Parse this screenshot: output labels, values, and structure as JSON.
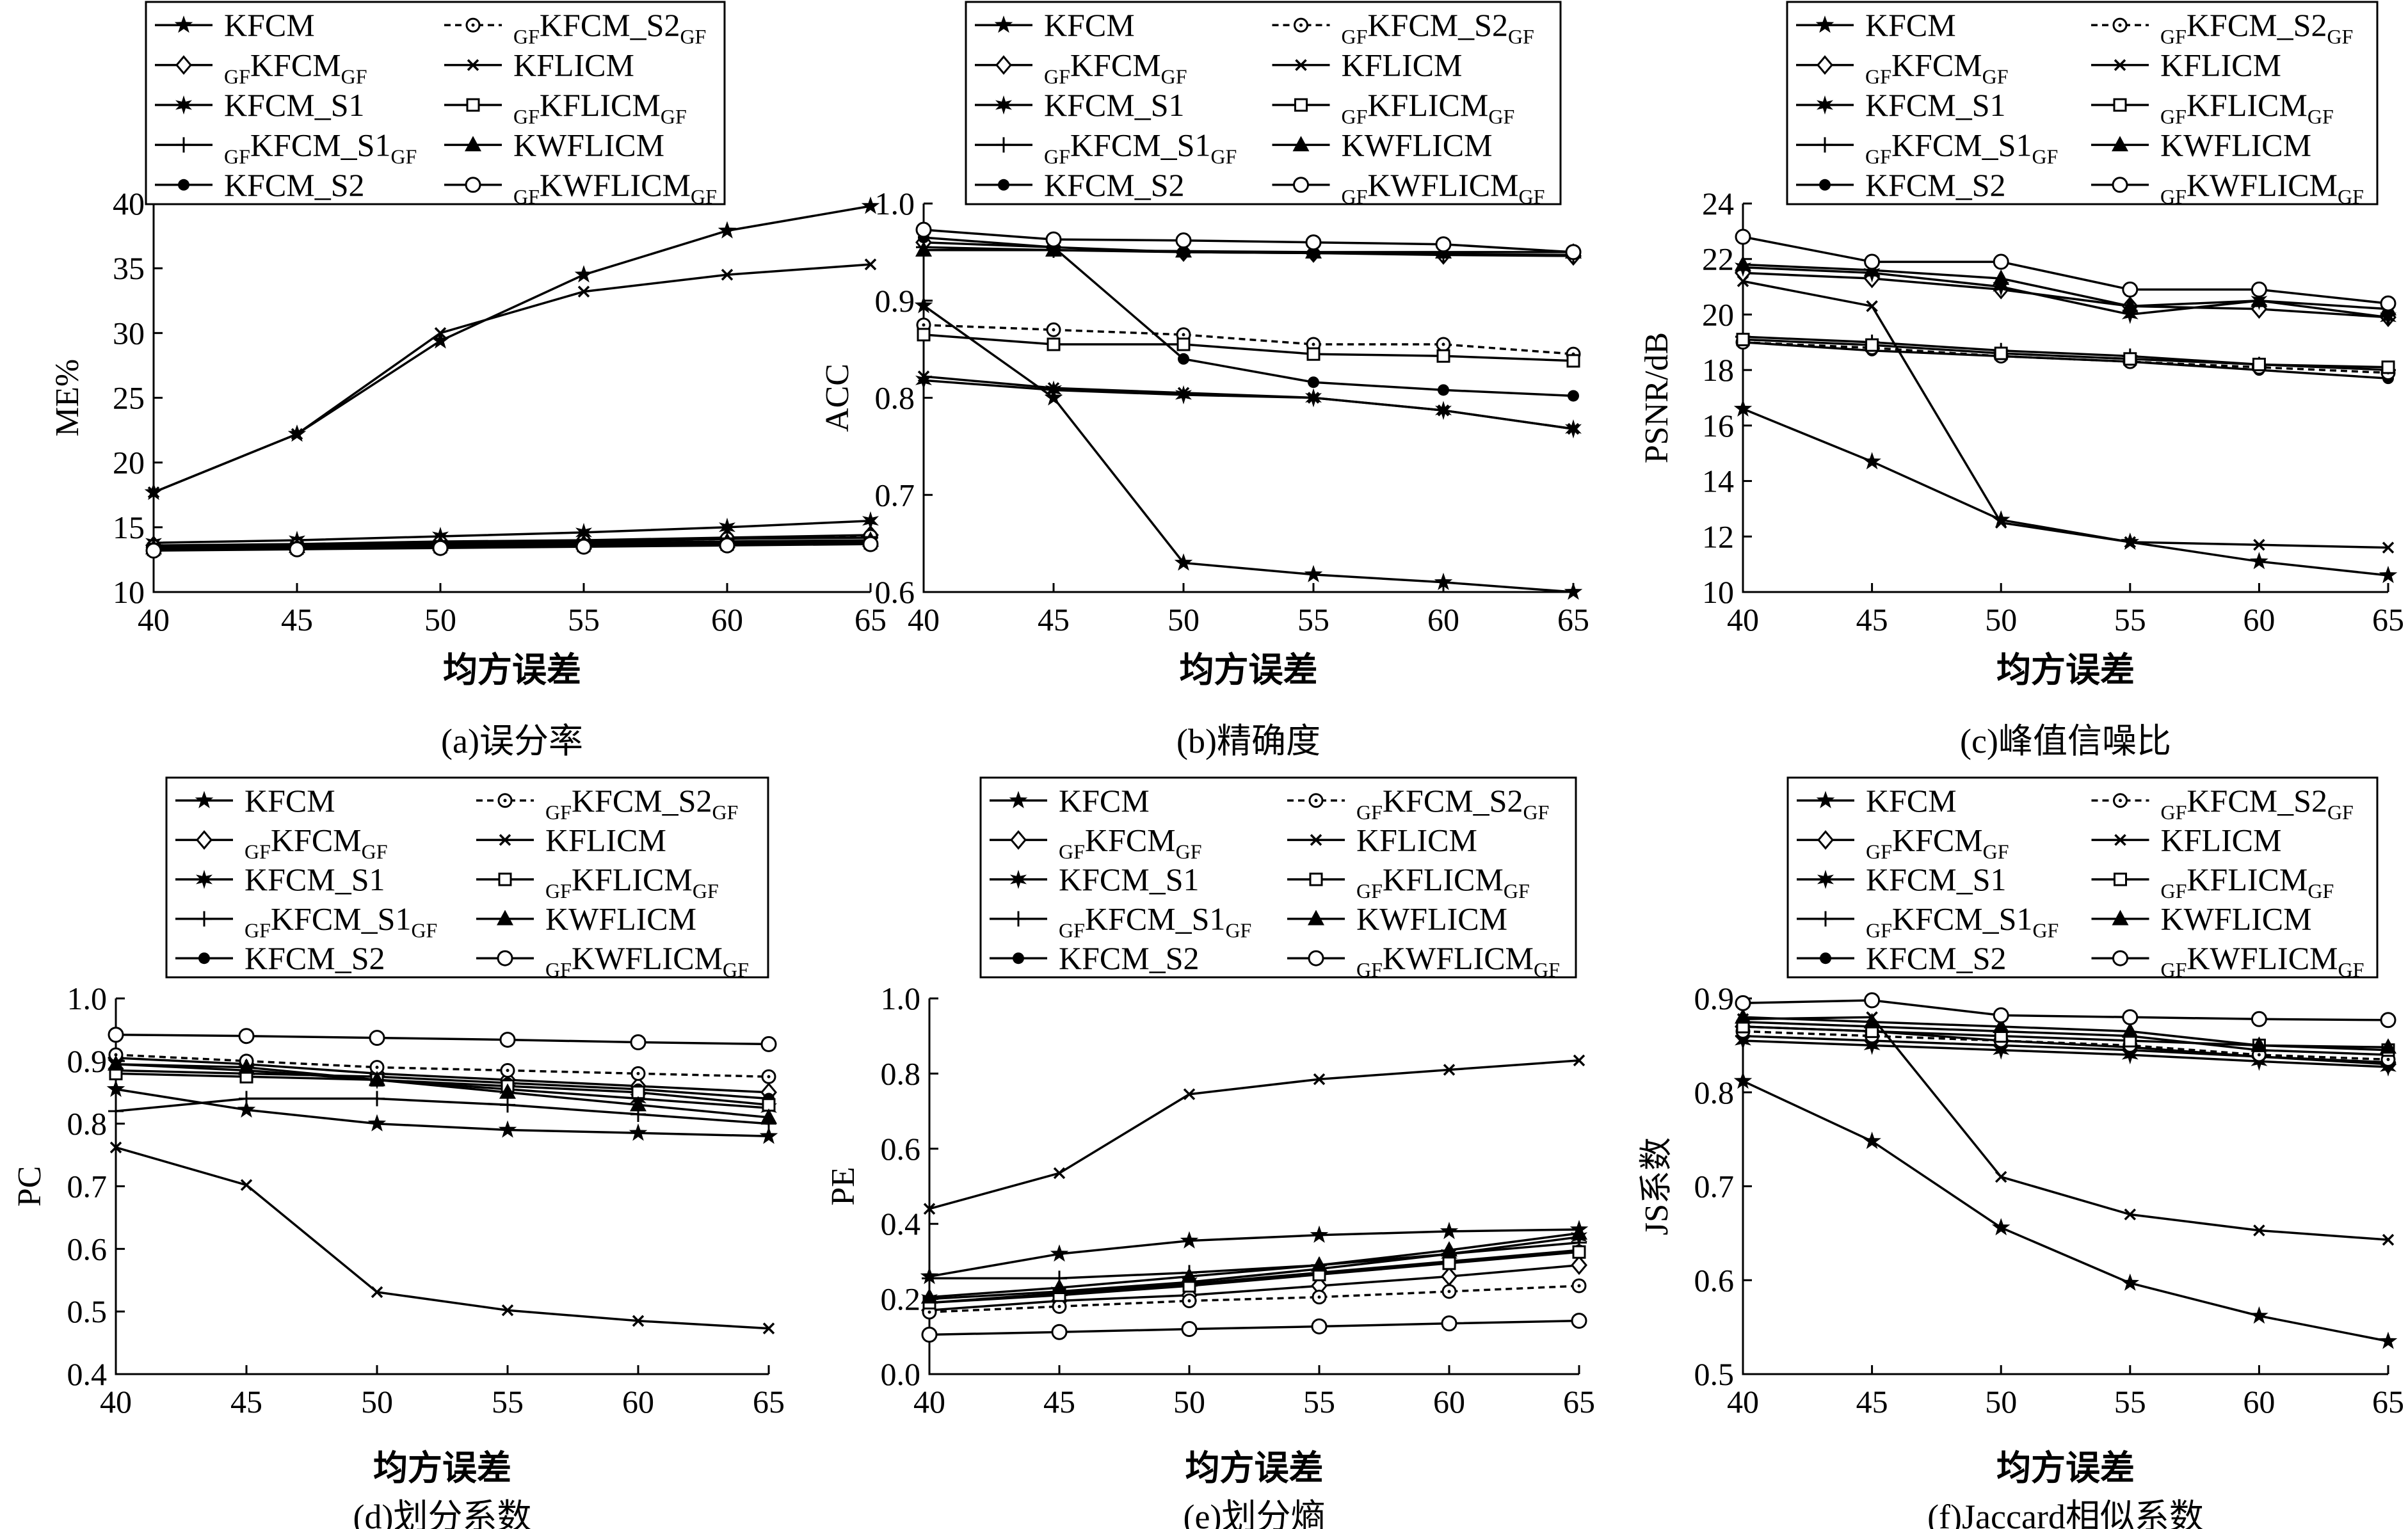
{
  "chart_data": [
    {
      "type": "line",
      "caption": "(a)误分率",
      "xlabel": "均方误差",
      "ylabel": "ME%",
      "x": [
        40,
        45,
        50,
        55,
        60,
        65
      ],
      "xlim": [
        40,
        65
      ],
      "ylim": [
        10,
        40
      ],
      "yticks": [
        "10",
        "15",
        "20",
        "25",
        "30",
        "35",
        "40"
      ],
      "legend_position": "top",
      "series": [
        {
          "name": "KFCM",
          "values": [
            17.7,
            22.2,
            29.4,
            34.5,
            37.9,
            39.8
          ]
        },
        {
          "name": "KFLICM",
          "values": [
            17.7,
            22.2,
            30.0,
            33.2,
            34.5,
            35.3
          ]
        },
        {
          "name": "GFKFCMGF",
          "values": [
            13.6,
            13.7,
            13.9,
            14.0,
            14.2,
            14.4
          ]
        },
        {
          "name": "KFCM_S1",
          "values": [
            13.8,
            14.0,
            14.3,
            14.6,
            15.0,
            15.5
          ]
        },
        {
          "name": "GFKFCM_S1GF",
          "values": [
            13.5,
            13.6,
            13.8,
            13.9,
            14.1,
            14.2
          ]
        },
        {
          "name": "KFCM_S2",
          "values": [
            13.4,
            13.5,
            13.6,
            13.7,
            13.8,
            13.9
          ]
        },
        {
          "name": "GFKFCM_S2GF",
          "values": [
            13.5,
            13.6,
            13.8,
            13.9,
            14.1,
            14.3
          ]
        },
        {
          "name": "GFKFLICMGF",
          "values": [
            13.3,
            13.4,
            13.5,
            13.6,
            13.7,
            13.8
          ]
        },
        {
          "name": "KWFLICM",
          "values": [
            13.4,
            13.5,
            13.7,
            13.8,
            13.9,
            14.0
          ]
        },
        {
          "name": "GFKWFLICMGF",
          "values": [
            13.2,
            13.3,
            13.4,
            13.5,
            13.6,
            13.7
          ]
        }
      ]
    },
    {
      "type": "line",
      "caption": "(b)精确度",
      "xlabel": "均方误差",
      "ylabel": "ACC",
      "x": [
        40,
        45,
        50,
        55,
        60,
        65
      ],
      "xlim": [
        40,
        65
      ],
      "ylim": [
        0.6,
        1.0
      ],
      "yticks": [
        "0.6",
        "0.7",
        "0.8",
        "0.9",
        "1.0"
      ],
      "legend_position": "top",
      "series": [
        {
          "name": "KFCM",
          "values": [
            0.895,
            0.8,
            0.63,
            0.618,
            0.61,
            0.6
          ]
        },
        {
          "name": "KFLICM",
          "values": [
            0.822,
            0.81,
            0.805,
            0.8,
            0.787,
            0.768
          ]
        },
        {
          "name": "GFKFCMGF",
          "values": [
            0.96,
            0.955,
            0.95,
            0.949,
            0.947,
            0.946
          ]
        },
        {
          "name": "KFCM_S1",
          "values": [
            0.818,
            0.808,
            0.803,
            0.8,
            0.787,
            0.768
          ]
        },
        {
          "name": "GFKFCM_S1GF",
          "values": [
            0.955,
            0.952,
            0.95,
            0.949,
            0.948,
            0.947
          ]
        },
        {
          "name": "KFCM_S2",
          "values": [
            0.965,
            0.955,
            0.84,
            0.816,
            0.808,
            0.802
          ]
        },
        {
          "name": "GFKFCM_S2GF",
          "values": [
            0.875,
            0.87,
            0.865,
            0.855,
            0.855,
            0.845
          ]
        },
        {
          "name": "GFKFLICMGF",
          "values": [
            0.865,
            0.855,
            0.855,
            0.845,
            0.843,
            0.838
          ]
        },
        {
          "name": "KWFLICM",
          "values": [
            0.952,
            0.952,
            0.951,
            0.95,
            0.95,
            0.95
          ]
        },
        {
          "name": "GFKWFLICMGF",
          "values": [
            0.973,
            0.963,
            0.962,
            0.96,
            0.958,
            0.95
          ]
        }
      ]
    },
    {
      "type": "line",
      "caption": "(c)峰值信噪比",
      "xlabel": "均方误差",
      "ylabel": "PSNR/dB",
      "x": [
        40,
        45,
        50,
        55,
        60,
        65
      ],
      "xlim": [
        40,
        65
      ],
      "ylim": [
        10,
        24
      ],
      "yticks": [
        "10",
        "12",
        "14",
        "16",
        "18",
        "20",
        "22",
        "24"
      ],
      "legend_position": "top",
      "series": [
        {
          "name": "KFCM",
          "values": [
            16.6,
            14.7,
            12.6,
            11.8,
            11.1,
            10.6
          ]
        },
        {
          "name": "KFLICM",
          "values": [
            21.2,
            20.3,
            12.5,
            11.8,
            11.7,
            11.6
          ]
        },
        {
          "name": "GFKFCMGF",
          "values": [
            21.5,
            21.3,
            20.9,
            20.3,
            20.2,
            19.9
          ]
        },
        {
          "name": "KFCM_S1",
          "values": [
            21.7,
            21.5,
            21.0,
            20.0,
            20.5,
            19.9
          ]
        },
        {
          "name": "GFKFCM_S1GF",
          "values": [
            19.2,
            19.0,
            18.7,
            18.5,
            18.2,
            18.0
          ]
        },
        {
          "name": "KFCM_S2",
          "values": [
            19.0,
            18.7,
            18.5,
            18.3,
            18.0,
            17.7
          ]
        },
        {
          "name": "GFKFCM_S2GF",
          "values": [
            19.0,
            18.8,
            18.5,
            18.3,
            18.1,
            17.9
          ]
        },
        {
          "name": "GFKFLICMGF",
          "values": [
            19.1,
            18.9,
            18.6,
            18.4,
            18.2,
            18.1
          ]
        },
        {
          "name": "KWFLICM",
          "values": [
            21.8,
            21.6,
            21.3,
            20.3,
            20.5,
            20.2
          ]
        },
        {
          "name": "GFKWFLICMGF",
          "values": [
            22.8,
            21.9,
            21.9,
            20.9,
            20.9,
            20.4
          ]
        }
      ]
    },
    {
      "type": "line",
      "caption": "(d)划分系数",
      "xlabel": "均方误差",
      "ylabel": "PC",
      "x": [
        40,
        45,
        50,
        55,
        60,
        65
      ],
      "xlim": [
        40,
        65
      ],
      "ylim": [
        0.4,
        1.0
      ],
      "yticks": [
        "0.4",
        "0.5",
        "0.6",
        "0.7",
        "0.8",
        "0.9",
        "1.0"
      ],
      "legend_position": "top",
      "series": [
        {
          "name": "KFCM",
          "values": [
            0.855,
            0.822,
            0.8,
            0.79,
            0.785,
            0.78
          ]
        },
        {
          "name": "KFLICM",
          "values": [
            0.762,
            0.702,
            0.531,
            0.502,
            0.485,
            0.473
          ]
        },
        {
          "name": "GFKFCMGF",
          "values": [
            0.905,
            0.895,
            0.88,
            0.87,
            0.86,
            0.85
          ]
        },
        {
          "name": "KFCM_S1",
          "values": [
            0.895,
            0.885,
            0.87,
            0.855,
            0.84,
            0.825
          ]
        },
        {
          "name": "GFKFCM_S1GF",
          "values": [
            0.82,
            0.84,
            0.84,
            0.83,
            0.815,
            0.8
          ]
        },
        {
          "name": "KFCM_S2",
          "values": [
            0.885,
            0.88,
            0.875,
            0.865,
            0.855,
            0.84
          ]
        },
        {
          "name": "GFKFCM_S2GF",
          "values": [
            0.91,
            0.9,
            0.89,
            0.885,
            0.88,
            0.875
          ]
        },
        {
          "name": "GFKFLICMGF",
          "values": [
            0.88,
            0.875,
            0.87,
            0.86,
            0.85,
            0.83
          ]
        },
        {
          "name": "KWFLICM",
          "values": [
            0.895,
            0.89,
            0.87,
            0.85,
            0.83,
            0.81
          ]
        },
        {
          "name": "GFKWFLICMGF",
          "values": [
            0.942,
            0.94,
            0.937,
            0.934,
            0.93,
            0.927
          ]
        }
      ]
    },
    {
      "type": "line",
      "caption": "(e)划分熵",
      "xlabel": "均方误差",
      "ylabel": "PE",
      "x": [
        40,
        45,
        50,
        55,
        60,
        65
      ],
      "xlim": [
        40,
        65
      ],
      "ylim": [
        0.0,
        1.0
      ],
      "yticks": [
        "0.0",
        "0.2",
        "0.4",
        "0.6",
        "0.8",
        "1.0"
      ],
      "legend_position": "top",
      "series": [
        {
          "name": "KFCM",
          "values": [
            0.26,
            0.32,
            0.355,
            0.37,
            0.38,
            0.385
          ]
        },
        {
          "name": "KFLICM",
          "values": [
            0.44,
            0.535,
            0.745,
            0.785,
            0.81,
            0.835
          ]
        },
        {
          "name": "GFKFCMGF",
          "values": [
            0.17,
            0.195,
            0.21,
            0.235,
            0.26,
            0.29
          ]
        },
        {
          "name": "KFCM_S1",
          "values": [
            0.2,
            0.22,
            0.245,
            0.28,
            0.32,
            0.365
          ]
        },
        {
          "name": "GFKFCM_S1GF",
          "values": [
            0.255,
            0.255,
            0.27,
            0.29,
            0.32,
            0.35
          ]
        },
        {
          "name": "KFCM_S2",
          "values": [
            0.19,
            0.215,
            0.24,
            0.27,
            0.3,
            0.33
          ]
        },
        {
          "name": "GFKFCM_S2GF",
          "values": [
            0.165,
            0.18,
            0.195,
            0.205,
            0.22,
            0.235
          ]
        },
        {
          "name": "GFKFLICMGF",
          "values": [
            0.19,
            0.21,
            0.235,
            0.265,
            0.295,
            0.325
          ]
        },
        {
          "name": "KWFLICM",
          "values": [
            0.205,
            0.23,
            0.26,
            0.29,
            0.33,
            0.375
          ]
        },
        {
          "name": "GFKWFLICMGF",
          "values": [
            0.105,
            0.112,
            0.12,
            0.127,
            0.135,
            0.142
          ]
        }
      ]
    },
    {
      "type": "line",
      "caption": "(f)Jaccard相似系数",
      "xlabel": "均方误差",
      "ylabel": "JS系数",
      "x": [
        40,
        45,
        50,
        55,
        60,
        65
      ],
      "xlim": [
        40,
        65
      ],
      "ylim": [
        0.5,
        0.9
      ],
      "yticks": [
        "0.5",
        "0.6",
        "0.7",
        "0.8",
        "0.9"
      ],
      "legend_position": "top",
      "series": [
        {
          "name": "KFCM",
          "values": [
            0.812,
            0.748,
            0.656,
            0.597,
            0.562,
            0.535
          ]
        },
        {
          "name": "KFLICM",
          "values": [
            0.878,
            0.88,
            0.71,
            0.67,
            0.653,
            0.643
          ]
        },
        {
          "name": "GFKFCMGF",
          "values": [
            0.87,
            0.865,
            0.855,
            0.848,
            0.838,
            0.83
          ]
        },
        {
          "name": "KFCM_S1",
          "values": [
            0.855,
            0.85,
            0.845,
            0.84,
            0.833,
            0.827
          ]
        },
        {
          "name": "GFKFCM_S1GF",
          "values": [
            0.86,
            0.855,
            0.85,
            0.845,
            0.838,
            0.832
          ]
        },
        {
          "name": "KFCM_S2",
          "values": [
            0.875,
            0.87,
            0.865,
            0.86,
            0.845,
            0.84
          ]
        },
        {
          "name": "GFKFCM_S2GF",
          "values": [
            0.865,
            0.86,
            0.855,
            0.85,
            0.84,
            0.835
          ]
        },
        {
          "name": "GFKFLICMGF",
          "values": [
            0.87,
            0.865,
            0.86,
            0.855,
            0.85,
            0.845
          ]
        },
        {
          "name": "KWFLICM",
          "values": [
            0.88,
            0.875,
            0.87,
            0.865,
            0.85,
            0.848
          ]
        },
        {
          "name": "GFKWFLICMGF",
          "values": [
            0.895,
            0.898,
            0.882,
            0.88,
            0.878,
            0.877
          ]
        }
      ]
    }
  ]
}
